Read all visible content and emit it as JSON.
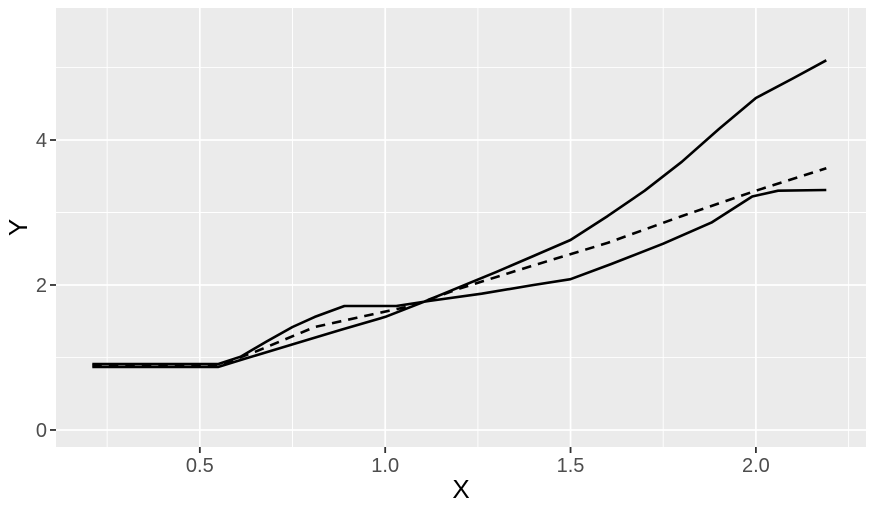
{
  "figure": {
    "background": "#FFFFFF",
    "panel_background": "#EBEBEB",
    "grid_color": "#FFFFFF",
    "tick_label_color": "#4D4D4D",
    "tick_mark_color": "#333333",
    "series_color": "#000000"
  },
  "axes": {
    "x_title": "X",
    "y_title": "Y"
  },
  "chart_data": {
    "type": "line",
    "title": "",
    "xlabel": "X",
    "ylabel": "Y",
    "xlim": [
      0.112,
      2.297
    ],
    "ylim": [
      -0.235,
      5.821
    ],
    "grid": true,
    "legend_position": "none",
    "x_major_ticks": [
      0.5,
      1.0,
      1.5,
      2.0
    ],
    "x_tick_labels": [
      "0.5",
      "1.0",
      "1.5",
      "2.0"
    ],
    "x_minor_ticks": [
      0.25,
      0.75,
      1.25,
      1.75,
      2.25
    ],
    "y_major_ticks": [
      0,
      2,
      4
    ],
    "y_tick_labels": [
      "0",
      "2",
      "4"
    ],
    "y_minor_ticks": [
      1,
      3,
      5
    ],
    "series": [
      {
        "name": "lower-solid-curve",
        "linetype": "solid",
        "color": "#000000",
        "points": [
          [
            0.21,
            0.91
          ],
          [
            0.55,
            0.91
          ],
          [
            0.61,
            1.01
          ],
          [
            0.68,
            1.22
          ],
          [
            0.75,
            1.42
          ],
          [
            0.81,
            1.56
          ],
          [
            0.89,
            1.71
          ],
          [
            1.03,
            1.71
          ],
          [
            1.12,
            1.78
          ],
          [
            1.26,
            1.88
          ],
          [
            1.4,
            2.0
          ],
          [
            1.5,
            2.08
          ],
          [
            1.61,
            2.29
          ],
          [
            1.75,
            2.57
          ],
          [
            1.88,
            2.86
          ],
          [
            1.99,
            3.22
          ],
          [
            2.06,
            3.3
          ],
          [
            2.19,
            3.31
          ]
        ]
      },
      {
        "name": "upper-solid-curve",
        "linetype": "solid",
        "color": "#000000",
        "points": [
          [
            0.21,
            0.87
          ],
          [
            0.55,
            0.87
          ],
          [
            0.62,
            0.98
          ],
          [
            0.75,
            1.18
          ],
          [
            0.88,
            1.38
          ],
          [
            1.0,
            1.56
          ],
          [
            1.1,
            1.76
          ],
          [
            1.2,
            1.97
          ],
          [
            1.3,
            2.18
          ],
          [
            1.4,
            2.4
          ],
          [
            1.5,
            2.62
          ],
          [
            1.6,
            2.95
          ],
          [
            1.7,
            3.3
          ],
          [
            1.8,
            3.7
          ],
          [
            1.9,
            4.15
          ],
          [
            2.0,
            4.58
          ],
          [
            2.1,
            4.85
          ],
          [
            2.19,
            5.1
          ]
        ]
      },
      {
        "name": "middle-dashed-line",
        "linetype": "dashed",
        "color": "#000000",
        "points": [
          [
            0.21,
            0.89
          ],
          [
            0.55,
            0.89
          ],
          [
            0.65,
            1.08
          ],
          [
            0.81,
            1.42
          ],
          [
            0.97,
            1.6
          ],
          [
            1.07,
            1.71
          ],
          [
            1.2,
            1.95
          ],
          [
            1.4,
            2.27
          ],
          [
            1.6,
            2.58
          ],
          [
            1.8,
            2.95
          ],
          [
            2.0,
            3.3
          ],
          [
            2.19,
            3.61
          ]
        ]
      }
    ]
  }
}
